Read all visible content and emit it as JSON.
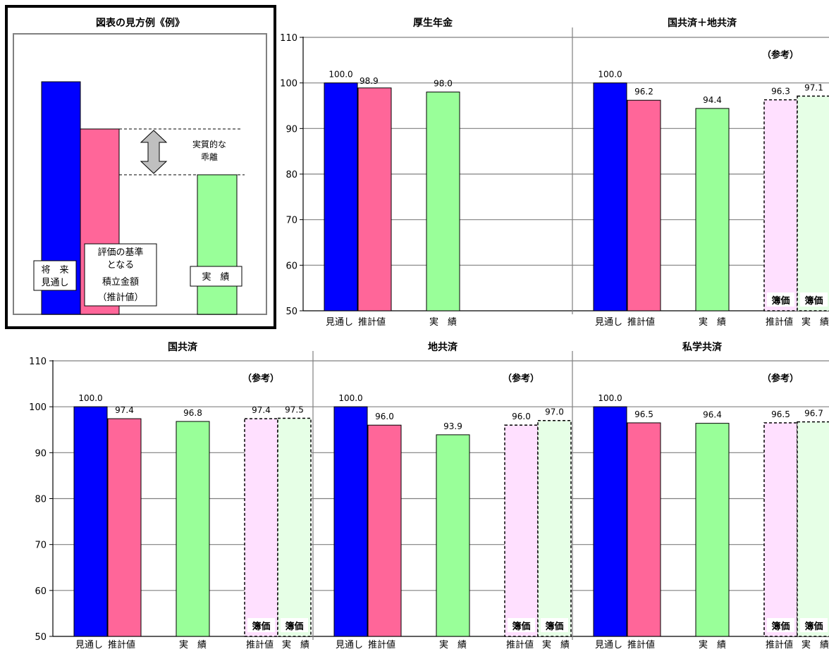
{
  "legend_box": {
    "title": "図表の見方例《例》",
    "label_future": [
      "将　来",
      "見通し"
    ],
    "label_estimate": [
      "評価の基準",
      "となる",
      "積立金額",
      "（推計値）"
    ],
    "label_actual": "実　績",
    "label_gap": [
      "実質的な",
      "乖離"
    ]
  },
  "colors": {
    "future": "#0000ff",
    "estimate": "#ff6699",
    "actual": "#99ff99",
    "book_estimate": "#ffe0ff",
    "book_actual": "#e6ffe6",
    "legend_gap_arrow": "#bfbfbf"
  },
  "chart_data": [
    {
      "type": "bar",
      "title": "厚生年金",
      "ylim": [
        50,
        110
      ],
      "yticks": [
        50,
        60,
        70,
        80,
        90,
        100,
        110
      ],
      "reference_note": "",
      "categories": [
        "見通し",
        "推計値",
        "実　績"
      ],
      "values": [
        100.0,
        98.9,
        98.0
      ],
      "value_labels": [
        "100.0",
        "98.9",
        "98.0"
      ],
      "book_value_bars": []
    },
    {
      "type": "bar",
      "title": "国共済＋地共済",
      "ylim": [
        50,
        110
      ],
      "yticks": [
        50,
        60,
        70,
        80,
        90,
        100,
        110
      ],
      "reference_note": "（参考）",
      "categories": [
        "見通し",
        "推計値",
        "実　績",
        "推計値",
        "実　績"
      ],
      "values": [
        100.0,
        96.2,
        94.4,
        96.3,
        97.1
      ],
      "value_labels": [
        "100.0",
        "96.2",
        "94.4",
        "96.3",
        "97.1"
      ],
      "book_value_bars": [
        3,
        4
      ],
      "book_value_label": "簿価"
    },
    {
      "type": "bar",
      "title": "国共済",
      "ylim": [
        50,
        110
      ],
      "yticks": [
        50,
        60,
        70,
        80,
        90,
        100,
        110
      ],
      "reference_note": "（参考）",
      "categories": [
        "見通し",
        "推計値",
        "実　績",
        "推計値",
        "実　績"
      ],
      "values": [
        100.0,
        97.4,
        96.8,
        97.4,
        97.5
      ],
      "value_labels": [
        "100.0",
        "97.4",
        "96.8",
        "97.4",
        "97.5"
      ],
      "book_value_bars": [
        3,
        4
      ],
      "book_value_label": "簿価"
    },
    {
      "type": "bar",
      "title": "地共済",
      "ylim": [
        50,
        110
      ],
      "yticks": [
        50,
        60,
        70,
        80,
        90,
        100,
        110
      ],
      "reference_note": "（参考）",
      "categories": [
        "見通し",
        "推計値",
        "実　績",
        "推計値",
        "実　績"
      ],
      "values": [
        100.0,
        96.0,
        93.9,
        96.0,
        97.0
      ],
      "value_labels": [
        "100.0",
        "96.0",
        "93.9",
        "96.0",
        "97.0"
      ],
      "book_value_bars": [
        3,
        4
      ],
      "book_value_label": "簿価"
    },
    {
      "type": "bar",
      "title": "私学共済",
      "ylim": [
        50,
        110
      ],
      "yticks": [
        50,
        60,
        70,
        80,
        90,
        100,
        110
      ],
      "reference_note": "（参考）",
      "categories": [
        "見通し",
        "推計値",
        "実　績",
        "推計値",
        "実　績"
      ],
      "values": [
        100.0,
        96.5,
        96.4,
        96.5,
        96.7
      ],
      "value_labels": [
        "100.0",
        "96.5",
        "96.4",
        "96.5",
        "96.7"
      ],
      "book_value_bars": [
        3,
        4
      ],
      "book_value_label": "簿価"
    }
  ]
}
